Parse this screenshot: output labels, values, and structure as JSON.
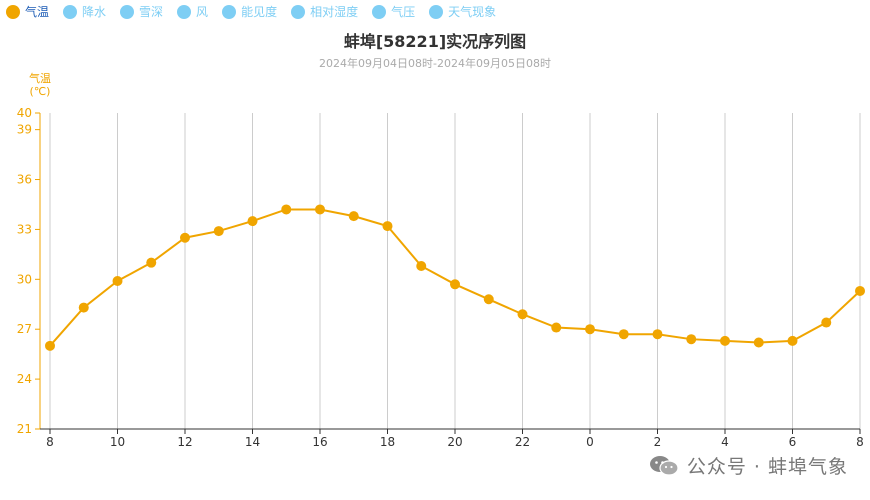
{
  "tabs": [
    {
      "label": "气温",
      "active": true
    },
    {
      "label": "降水",
      "active": false
    },
    {
      "label": "雪深",
      "active": false
    },
    {
      "label": "风",
      "active": false
    },
    {
      "label": "能见度",
      "active": false
    },
    {
      "label": "相对湿度",
      "active": false
    },
    {
      "label": "气压",
      "active": false
    },
    {
      "label": "天气现象",
      "active": false
    }
  ],
  "colors": {
    "accent": "#F0A500",
    "active_tab_text": "#1A5BB5",
    "inactive": "#7ECEF4",
    "grid": "#cccccc"
  },
  "watermark": {
    "text": "公众号 · 蚌埠气象",
    "icon": "wechat-icon"
  },
  "chart_data": {
    "type": "line",
    "title": "蚌埠[58221]实况序列图",
    "subtitle": "2024年09月04日08时-2024年09月05日08时",
    "ylabel_line1": "气温",
    "ylabel_line2": "(℃)",
    "x": [
      "8",
      "9",
      "10",
      "11",
      "12",
      "13",
      "14",
      "15",
      "16",
      "17",
      "18",
      "19",
      "20",
      "21",
      "22",
      "23",
      "0",
      "1",
      "2",
      "3",
      "4",
      "5",
      "6",
      "7",
      "8"
    ],
    "x_tick_labels": [
      "8",
      "10",
      "12",
      "14",
      "16",
      "18",
      "20",
      "22",
      "0",
      "2",
      "4",
      "6",
      "8"
    ],
    "y_ticks": [
      21,
      24,
      27,
      30,
      33,
      36,
      39,
      40
    ],
    "ylim": [
      21,
      40
    ],
    "grid": "vertical",
    "series": [
      {
        "values": [
          26.0,
          28.3,
          29.9,
          31.0,
          32.5,
          32.9,
          33.5,
          34.2,
          34.2,
          33.8,
          33.2,
          30.8,
          29.7,
          28.8,
          27.9,
          27.1,
          27.0,
          26.7,
          26.7,
          26.4,
          26.3,
          26.2,
          26.3,
          27.4,
          29.3
        ]
      }
    ]
  }
}
